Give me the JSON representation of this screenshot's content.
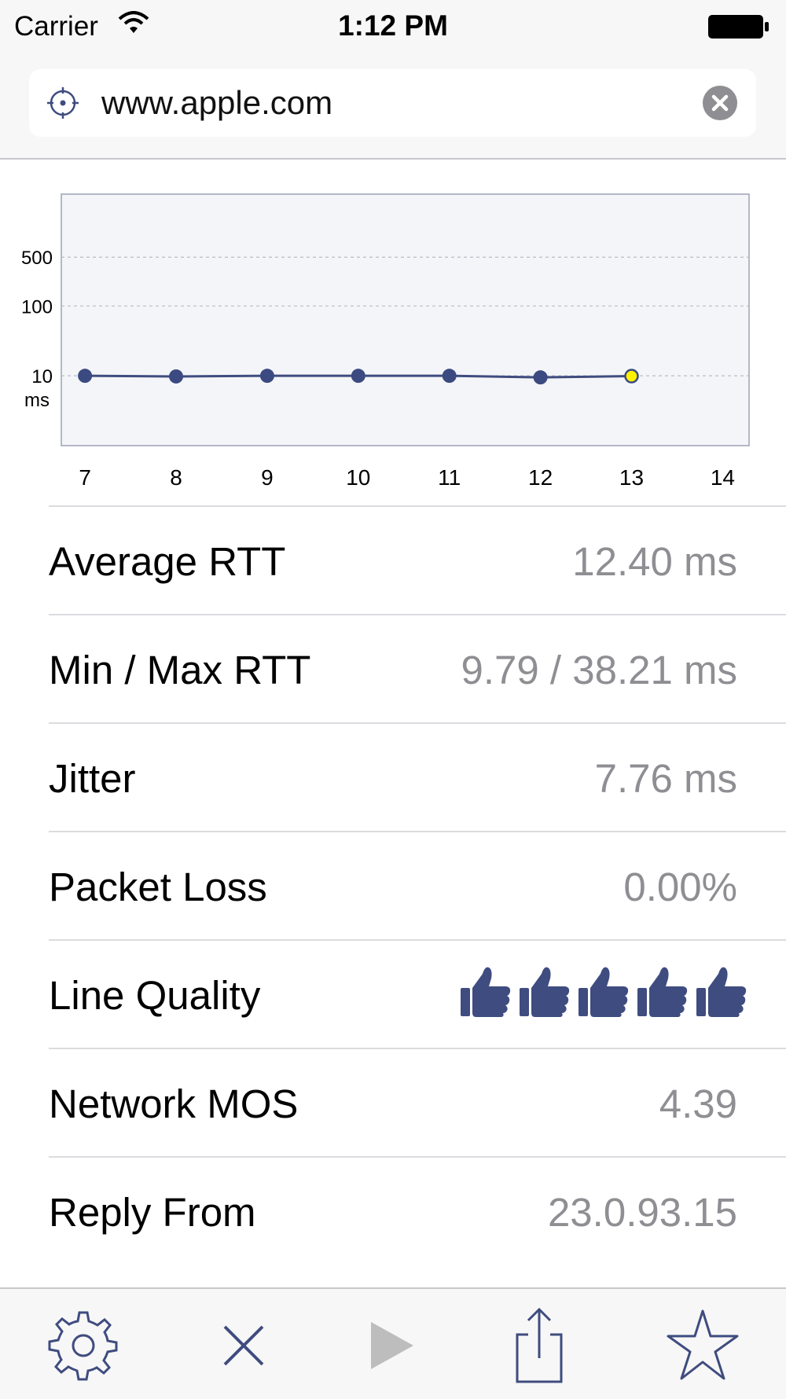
{
  "status_bar": {
    "carrier": "Carrier",
    "time": "1:12 PM"
  },
  "search": {
    "value": "www.apple.com"
  },
  "chart_data": {
    "type": "line",
    "x_ticks": [
      7,
      8,
      9,
      10,
      11,
      12,
      13,
      14
    ],
    "y_scale": "log",
    "y_ticks": [
      {
        "value": 500,
        "label": "500"
      },
      {
        "value": 100,
        "label": "100"
      },
      {
        "value": 10,
        "label": "10"
      }
    ],
    "y_unit": "ms",
    "xlim": [
      6.74,
      14.29
    ],
    "ylim": [
      1,
      4000
    ],
    "grid": true,
    "series": [
      {
        "points": [
          [
            7,
            10.0
          ],
          [
            8,
            9.8
          ],
          [
            9,
            10.0
          ],
          [
            10,
            10.0
          ],
          [
            11,
            10.0
          ],
          [
            12,
            9.5
          ],
          [
            13,
            9.9
          ]
        ]
      }
    ],
    "highlight_last_point": true,
    "colors": {
      "line": "#3f4c7f",
      "point": "#3b4a80",
      "highlight": "#fff200",
      "plot_bg": "#f4f5f8"
    }
  },
  "stats": [
    {
      "label": "Average RTT",
      "value": "12.40 ms"
    },
    {
      "label": "Min / Max RTT",
      "value": "9.79 / 38.21 ms"
    },
    {
      "label": "Jitter",
      "value": "7.76 ms"
    },
    {
      "label": "Packet Loss",
      "value": "0.00%"
    },
    {
      "label": "Line Quality",
      "rating": 5,
      "rating_max": 5,
      "icon": "thumbs-up-icon"
    },
    {
      "label": "Network MOS",
      "value": "4.39"
    },
    {
      "label": "Reply From",
      "value": "23.0.93.15"
    }
  ],
  "toolbar": {
    "icons": [
      "gear-icon",
      "close-icon",
      "play-icon",
      "share-icon",
      "star-icon"
    ],
    "accent": "#3f4c7f"
  }
}
